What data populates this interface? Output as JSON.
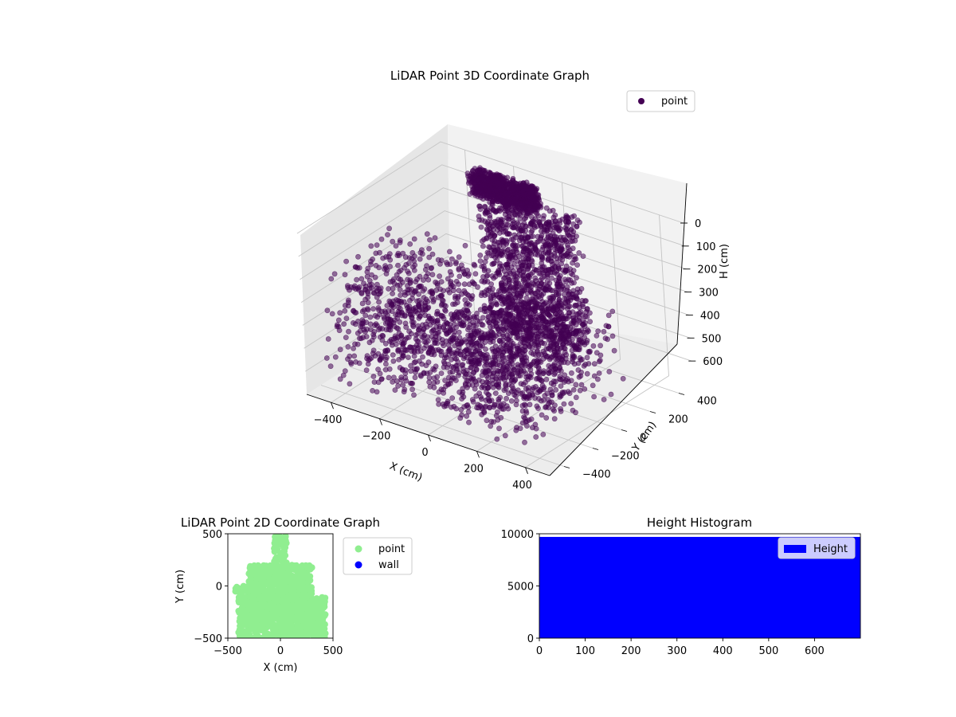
{
  "chart_data": [
    {
      "type": "scatter3d",
      "title": "LiDAR Point 3D Coordinate Graph",
      "xlabel": "X (cm)",
      "ylabel": "Y (cm)",
      "zlabel": "H (cm)",
      "xlim": [
        -500,
        500
      ],
      "ylim": [
        -500,
        500
      ],
      "zlim": [
        700,
        0
      ],
      "xticks": [
        "-400",
        "-200",
        "0",
        "200",
        "400"
      ],
      "yticks": [
        "400",
        "200",
        "0",
        "-200",
        "-400"
      ],
      "zticks": [
        "0",
        "100",
        "200",
        "300",
        "400",
        "500",
        "600"
      ],
      "legend": [
        "point"
      ],
      "legend_position": "top-right",
      "grid": true,
      "series": [
        {
          "name": "point",
          "color": "#440154",
          "clusters": [
            {
              "x": [
                -320,
                -60
              ],
              "y": [
                380,
                450
              ],
              "h": [
                20,
                120
              ],
              "count": 900
            },
            {
              "x": [
                -250,
                120
              ],
              "y": [
                300,
                450
              ],
              "h": [
                80,
                650
              ],
              "count": 1200
            },
            {
              "x": [
                -450,
                -150
              ],
              "y": [
                -450,
                100
              ],
              "h": [
                150,
                650
              ],
              "count": 500
            },
            {
              "x": [
                -250,
                300
              ],
              "y": [
                -400,
                200
              ],
              "h": [
                250,
                650
              ],
              "count": 800
            },
            {
              "x": [
                0,
                400
              ],
              "y": [
                -450,
                200
              ],
              "h": [
                300,
                650
              ],
              "count": 500
            }
          ]
        }
      ]
    },
    {
      "type": "scatter",
      "title": "LiDAR Point 2D Coordinate Graph",
      "xlabel": "X (cm)",
      "ylabel": "Y (cm)",
      "xlim": [
        -500,
        500
      ],
      "ylim": [
        -500,
        500
      ],
      "xticks": [
        "-500",
        "0",
        "500"
      ],
      "yticks": [
        "500",
        "0",
        "-500"
      ],
      "legend_position": "outside-right",
      "series": [
        {
          "name": "point",
          "color": "#90ee90",
          "clusters": [
            {
              "x": [
                -400,
                430
              ],
              "y": [
                -500,
                -100
              ],
              "count": 600
            },
            {
              "x": [
                -300,
                300
              ],
              "y": [
                -200,
                200
              ],
              "count": 500
            },
            {
              "x": [
                -60,
                60
              ],
              "y": [
                100,
                480
              ],
              "count": 80
            },
            {
              "x": [
                -430,
                -280
              ],
              "y": [
                -60,
                0
              ],
              "count": 40
            }
          ]
        },
        {
          "name": "wall",
          "color": "#0000ff",
          "clusters": []
        }
      ]
    },
    {
      "type": "bar",
      "title": "Height Histogram",
      "xlim": [
        0,
        700
      ],
      "ylim": [
        0,
        10000
      ],
      "xticks": [
        "0",
        "100",
        "200",
        "300",
        "400",
        "500",
        "600"
      ],
      "yticks": [
        "0",
        "5000",
        "10000"
      ],
      "legend_position": "top-right",
      "series": [
        {
          "name": "Height",
          "color": "#0000ff",
          "bins": [
            [
              0,
              700,
              9700
            ]
          ]
        }
      ]
    }
  ]
}
